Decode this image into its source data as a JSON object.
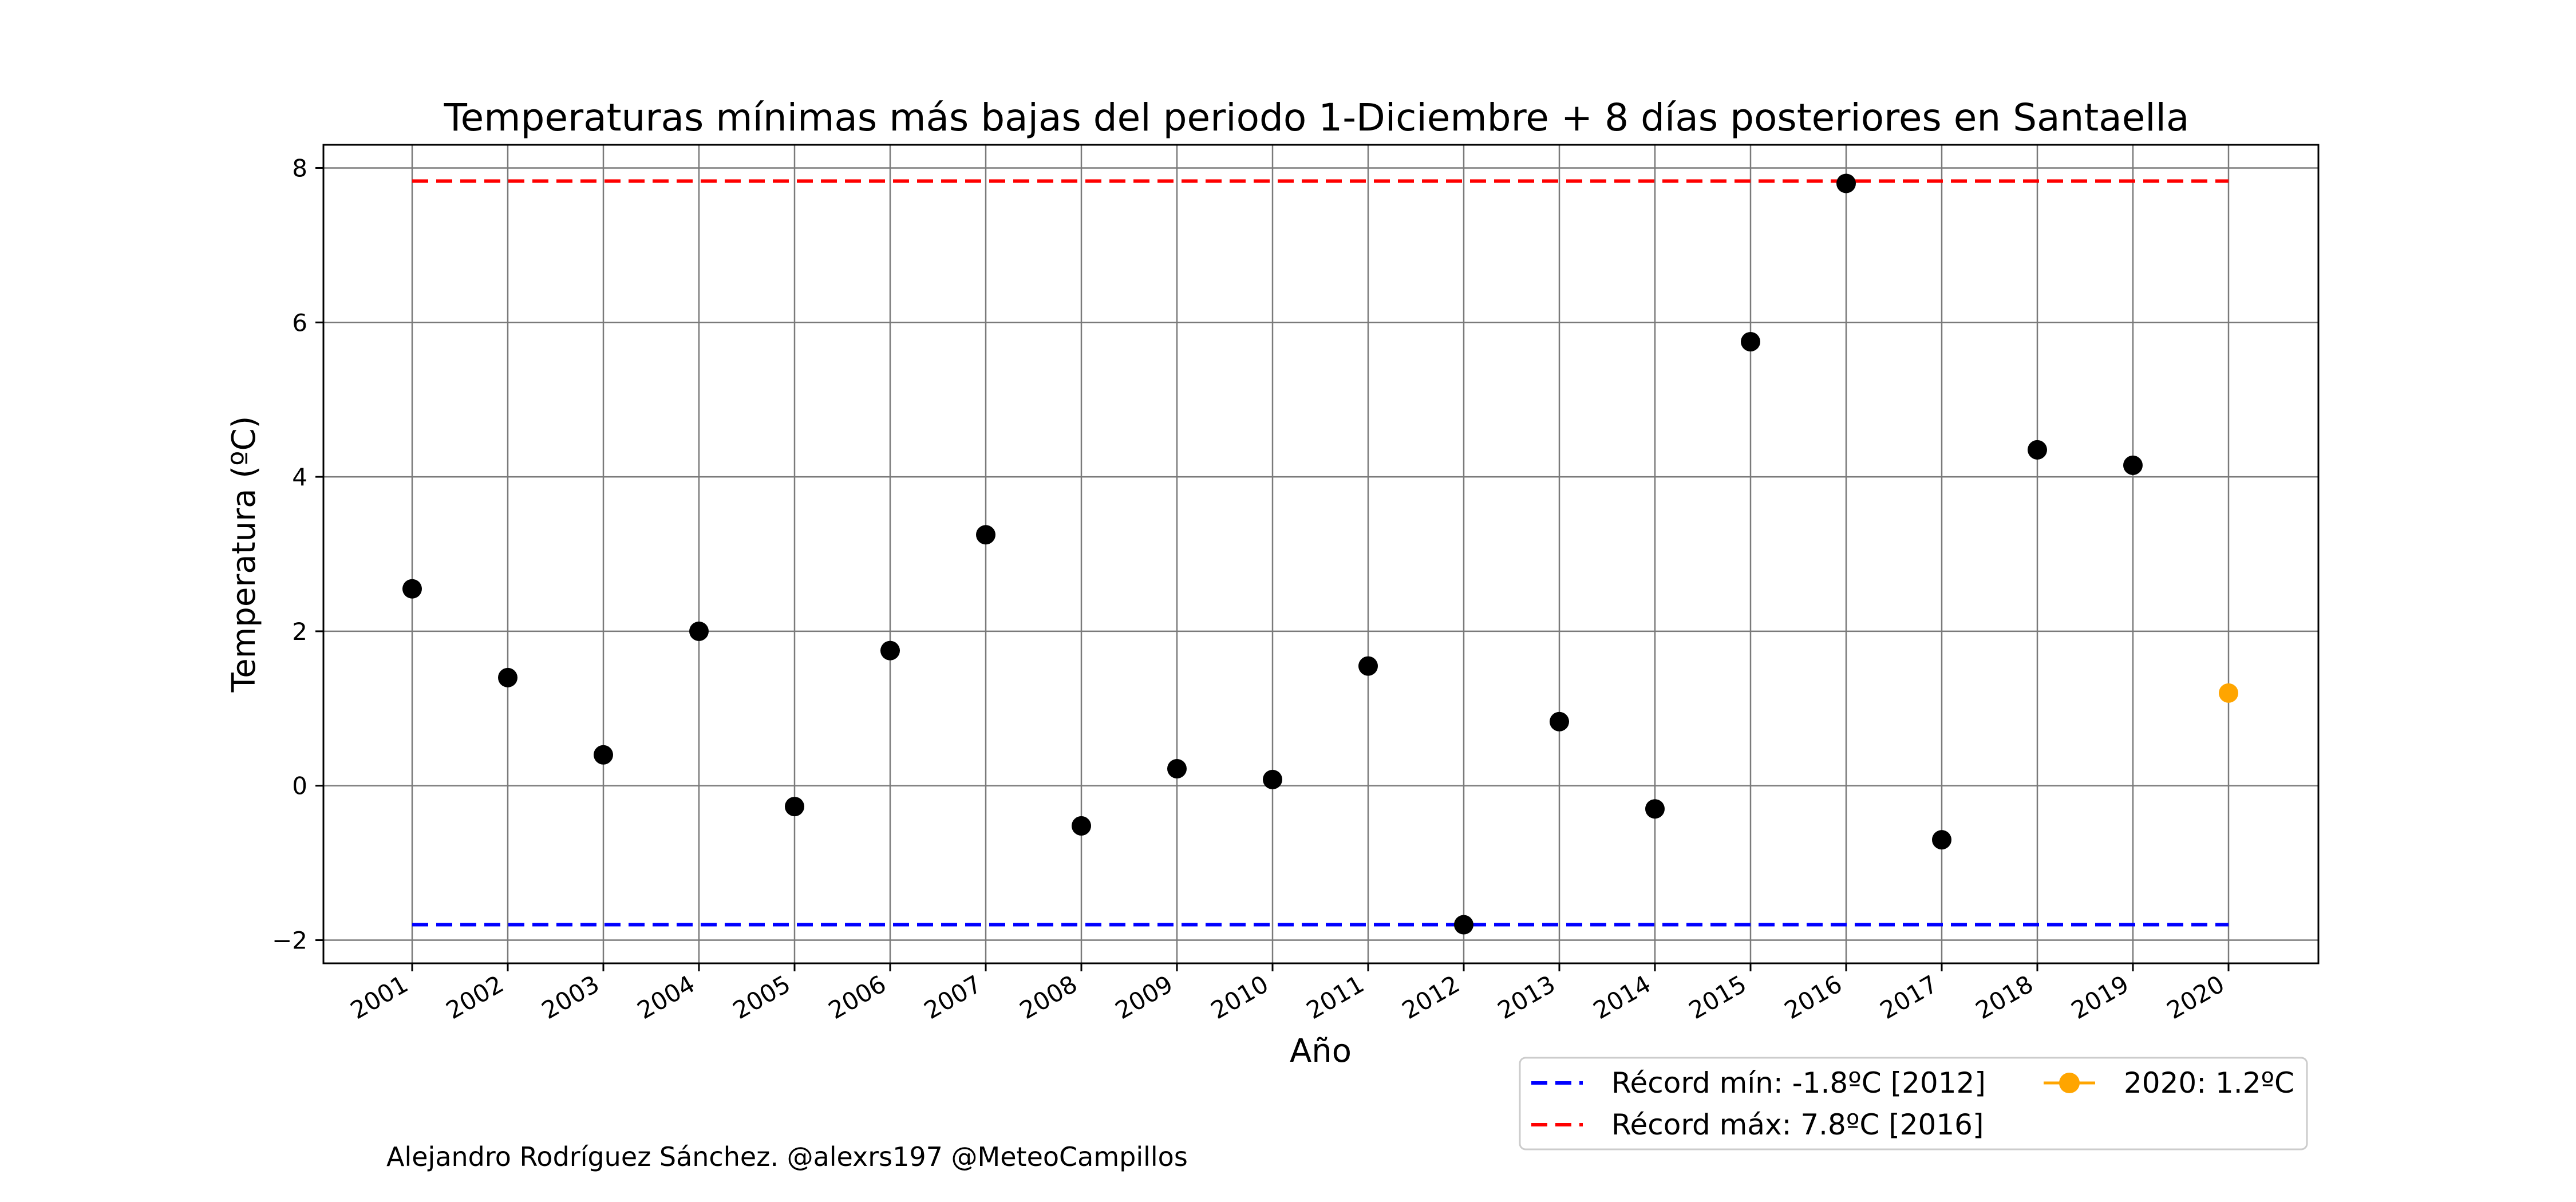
{
  "chart_data": {
    "type": "scatter",
    "title": "Temperaturas mínimas más bajas del periodo 1-Diciembre + 8 días posteriores en Santaella",
    "xlabel": "Año",
    "ylabel": "Temperatura (ºC)",
    "ylim": [
      -2.3,
      8.3
    ],
    "yticks": [
      -2,
      0,
      2,
      4,
      6,
      8
    ],
    "grid": true,
    "x": [
      "2001",
      "2002",
      "2003",
      "2004",
      "2005",
      "2006",
      "2007",
      "2008",
      "2009",
      "2010",
      "2011",
      "2012",
      "2013",
      "2014",
      "2015",
      "2016",
      "2017",
      "2018",
      "2019",
      "2020"
    ],
    "series": [
      {
        "years": [
          "2001",
          "2002",
          "2003",
          "2004",
          "2005",
          "2006",
          "2007",
          "2008",
          "2009",
          "2010",
          "2011",
          "2012",
          "2013",
          "2014",
          "2015",
          "2016",
          "2017",
          "2018",
          "2019"
        ],
        "values": [
          2.55,
          1.4,
          0.4,
          2.0,
          -0.27,
          1.75,
          3.25,
          -0.52,
          0.22,
          0.08,
          1.55,
          -1.8,
          0.83,
          -0.3,
          5.75,
          7.8,
          -0.7,
          4.35,
          4.15
        ],
        "color": "#000000"
      },
      {
        "name": "2020: 1.2ºC",
        "years": [
          "2020"
        ],
        "values": [
          1.2
        ],
        "color": "#FFA500"
      }
    ],
    "reference_lines": [
      {
        "name": "Récord mín: -1.8ºC [2012]",
        "value": -1.8,
        "color": "#0000FF",
        "style": "dashed",
        "from": "2001",
        "to": "2020"
      },
      {
        "name": "Récord máx: 7.8ºC [2016]",
        "value": 7.83,
        "color": "#FF0000",
        "style": "dashed",
        "from": "2001",
        "to": "2020"
      }
    ],
    "legend_placement": "bottom-right, below plot",
    "credit": "Alejandro Rodríguez Sánchez. @alexrs197 @MeteoCampillos"
  }
}
